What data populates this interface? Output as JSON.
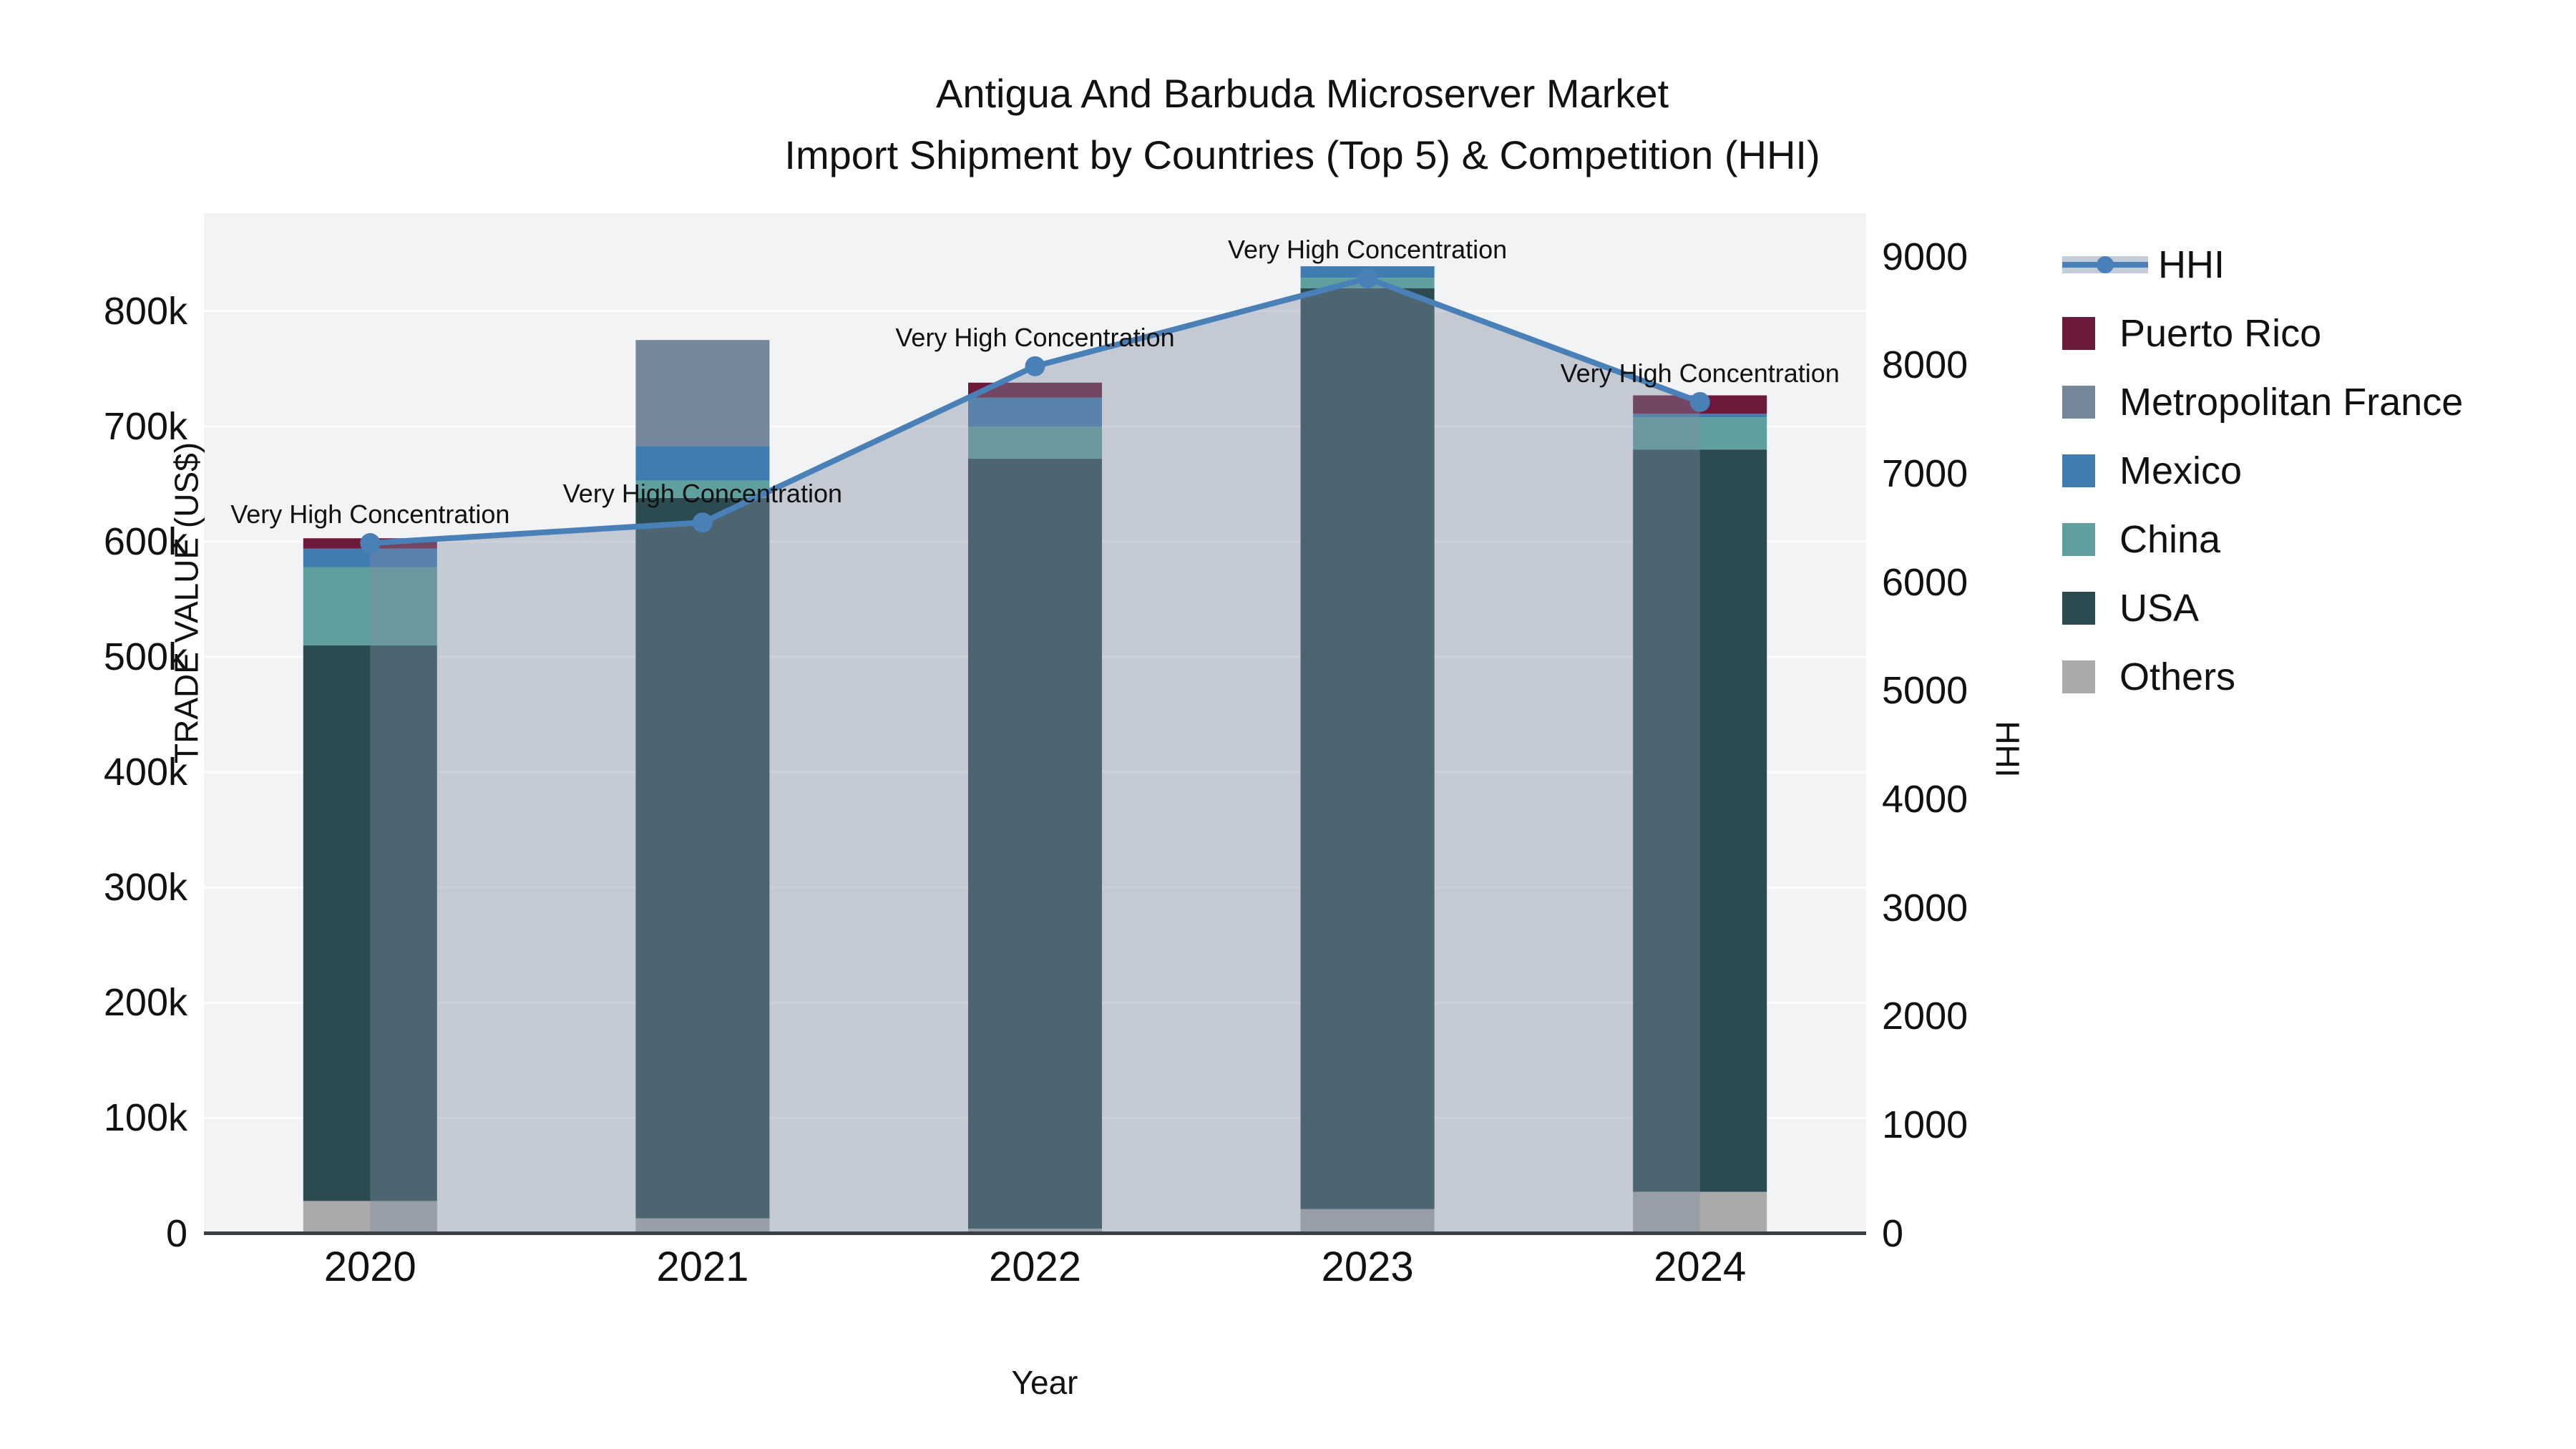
{
  "title": {
    "line1": "Antigua And Barbuda Microserver Market",
    "line2": "Import Shipment by Countries (Top 5) & Competition (HHI)"
  },
  "axes": {
    "y_left": {
      "title": "TRADE VALUE (US$)",
      "tick_values": [
        0,
        100000,
        200000,
        300000,
        400000,
        500000,
        600000,
        700000,
        800000
      ],
      "tick_labels": [
        "0",
        "100k",
        "200k",
        "300k",
        "400k",
        "500k",
        "600k",
        "700k",
        "800k"
      ]
    },
    "y_right": {
      "title": "HHI",
      "tick_values": [
        0,
        1000,
        2000,
        3000,
        4000,
        5000,
        6000,
        7000,
        8000,
        9000
      ],
      "tick_labels": [
        "0",
        "1000",
        "2000",
        "3000",
        "4000",
        "5000",
        "6000",
        "7000",
        "8000",
        "9000"
      ]
    },
    "x": {
      "title": "Year"
    }
  },
  "legend": {
    "entries": [
      "HHI",
      "Puerto Rico",
      "Metropolitan France",
      "Mexico",
      "China",
      "USA",
      "Others"
    ]
  },
  "annotations": {
    "text": "Very High Concentration"
  },
  "chart_data": {
    "type": "bar",
    "subtype": "stacked-bar-with-line",
    "categories": [
      "2020",
      "2021",
      "2022",
      "2023",
      "2024"
    ],
    "series": [
      {
        "name": "Others",
        "color": "#a9abab",
        "values": [
          28000,
          13000,
          4000,
          21000,
          36000
        ]
      },
      {
        "name": "USA",
        "color": "#2c4b50",
        "values": [
          482000,
          625000,
          668000,
          799000,
          644000
        ]
      },
      {
        "name": "China",
        "color": "#5fa09e",
        "values": [
          68000,
          15000,
          28000,
          9000,
          28000
        ]
      },
      {
        "name": "Mexico",
        "color": "#3e7cb2",
        "values": [
          16000,
          30000,
          25000,
          10000,
          3000
        ]
      },
      {
        "name": "Metropolitan France",
        "color": "#76879b",
        "values": [
          0,
          92000,
          0,
          0,
          0
        ]
      },
      {
        "name": "Puerto Rico",
        "color": "#6c193b",
        "values": [
          9000,
          0,
          13000,
          0,
          16000
        ]
      }
    ],
    "totals": [
      603000,
      775000,
      738000,
      839000,
      727000
    ],
    "line_series": {
      "name": "HHI",
      "axis": "right",
      "color": "#4a80b8",
      "area_fill": "rgba(127,141,163,0.40)",
      "values": [
        6360,
        6550,
        7990,
        8800,
        7660
      ]
    },
    "title": "Antigua And Barbuda Microserver Market — Import Shipment by Countries (Top 5) & Competition (HHI)",
    "xlabel": "Year",
    "ylabel": "TRADE VALUE (US$)",
    "y2label": "HHI",
    "ylim": [
      0,
      885000
    ],
    "y2lim": [
      0,
      9400
    ],
    "grid": true,
    "legend_position": "right",
    "plot_bg": "#f2f3f4",
    "grid_color": "#fdfdfd",
    "axis_line_color": "#3a3f44"
  }
}
